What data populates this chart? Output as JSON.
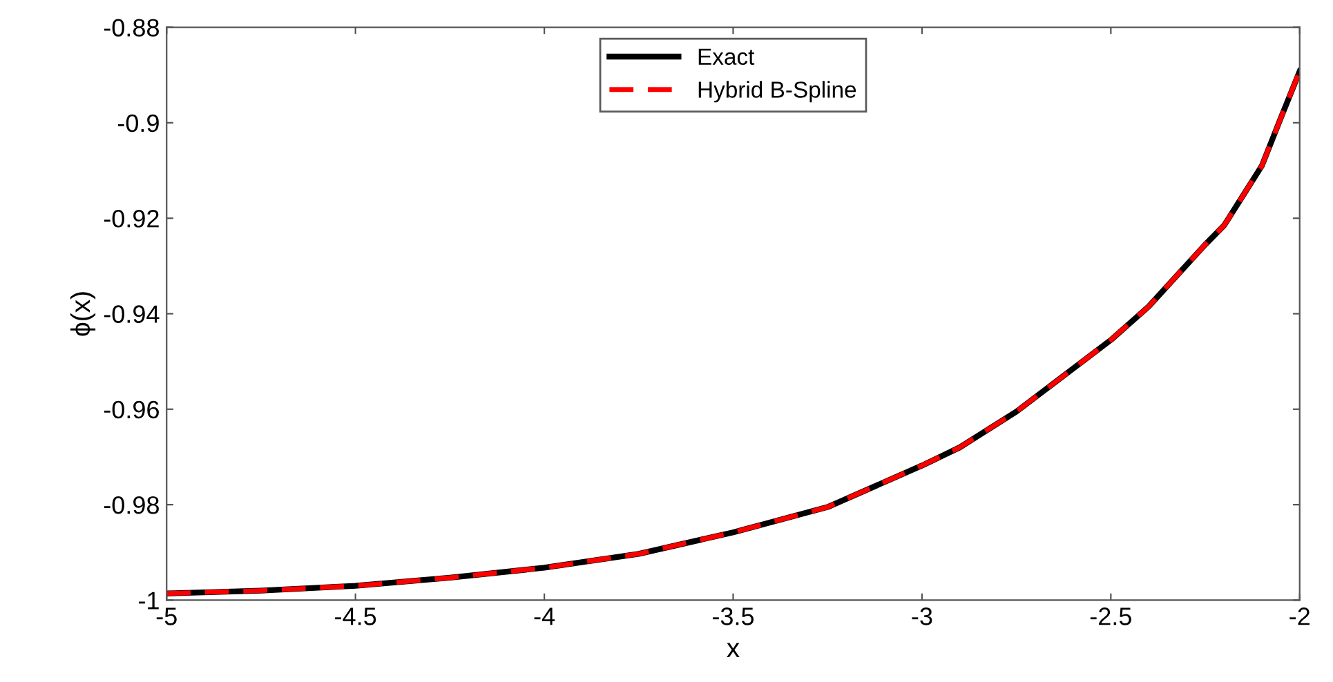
{
  "chart_data": {
    "type": "line",
    "xlabel": "x",
    "ylabel": "ϕ(x)",
    "x": [
      -5,
      -4.75,
      -4.5,
      -4.25,
      -4,
      -3.75,
      -3.5,
      -3.25,
      -3,
      -2.9,
      -2.75,
      -2.5,
      -2.4,
      -2.25,
      -2.2,
      -2.1,
      -2.05,
      -2
    ],
    "series": [
      {
        "name": "Exact",
        "color": "#000000",
        "line_style": "solid",
        "values": [
          -0.9986,
          -0.998,
          -0.997,
          -0.9953,
          -0.9932,
          -0.9903,
          -0.9858,
          -0.9805,
          -0.9718,
          -0.968,
          -0.9605,
          -0.9455,
          -0.9385,
          -0.9255,
          -0.9215,
          -0.909,
          -0.899,
          -0.8892
        ]
      },
      {
        "name": "Hybrid B-Spline",
        "color": "#ff0000",
        "line_style": "dashed",
        "values": [
          -0.9986,
          -0.998,
          -0.997,
          -0.9953,
          -0.9932,
          -0.9903,
          -0.9858,
          -0.9805,
          -0.9718,
          -0.968,
          -0.9605,
          -0.9455,
          -0.9385,
          -0.9255,
          -0.9215,
          -0.909,
          -0.899,
          -0.8892
        ]
      }
    ],
    "xlim": [
      -5,
      -2
    ],
    "xticks": [
      -5,
      -4.5,
      -4,
      -3.5,
      -3,
      -2.5,
      -2
    ],
    "ylim": [
      -1,
      -0.88
    ],
    "yticks": [
      -1,
      -0.98,
      -0.96,
      -0.94,
      -0.92,
      -0.9,
      -0.88
    ],
    "legend": "top",
    "grid": false,
    "marker": "none"
  }
}
